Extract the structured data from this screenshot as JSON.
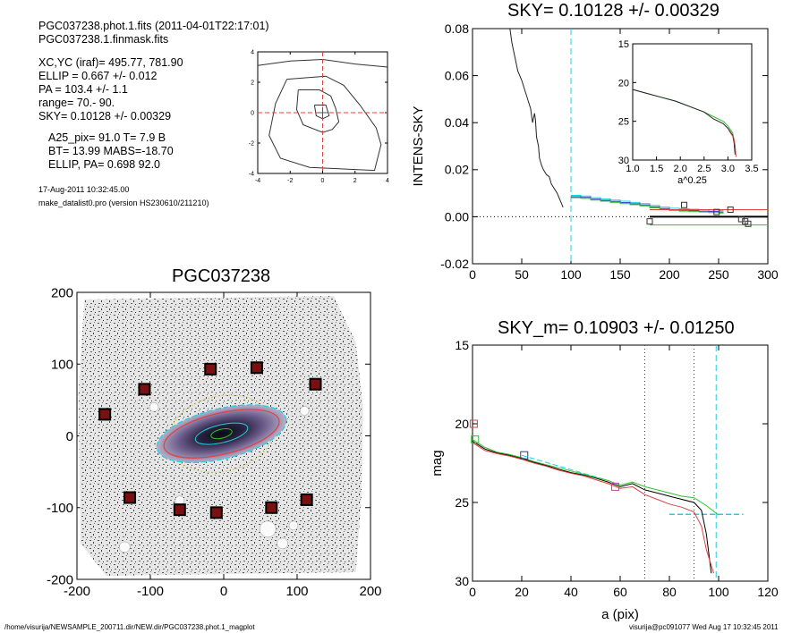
{
  "header": {
    "file_line": "PGC037238.phot.1.fits  (2011-04-01T22:17:01)",
    "mask_line": "PGC037238.1.finmask.fits",
    "params": [
      "XC,YC (iraf)=   495.77, 781.90",
      "ELLIP = 0.667 +/- 0.012",
      "PA    = 103.4 +/-   1.1",
      "range=   70.-   90.",
      "SKY= 0.10128 +/- 0.00329"
    ],
    "params2": [
      "A25_pix= 91.0   T= 7.9  B",
      "BT=  13.99   MABS=-18.70",
      "ELLIP, PA= 0.698    92.0"
    ],
    "date": "17-Aug-2011 10:32:45.00",
    "program": "make_datalist0.pro (version HS230610/211210)"
  },
  "footer": {
    "path": "/home/visurija/NEWSAMPLE_200711.dir/NEW.dir/PGC037238.phot.1_magplot",
    "user": "visurija@pc091077  Wed Aug 17 10:32:45 2011"
  },
  "colors": {
    "black": "#000000",
    "red": "#e04040",
    "green": "#30c030",
    "cyan": "#20d0e0",
    "blue": "#3030c0",
    "magenta": "#c040c0",
    "gray": "#888888"
  },
  "chart_data": [
    {
      "type": "line",
      "name": "contour-mini",
      "xlim": [
        -4,
        4
      ],
      "ylim": [
        -4,
        4
      ],
      "xticks": [
        -4,
        -2,
        0,
        2,
        4
      ],
      "yticks": [
        -4,
        -2,
        0,
        2,
        4
      ],
      "tick_labels_x": [
        "-4",
        "-2",
        "0",
        "2",
        "4"
      ],
      "tick_labels_y": [
        "-4",
        "-2",
        "0",
        "2",
        "4"
      ],
      "contours": [
        [
          [
            -4,
            3.1
          ],
          [
            -2,
            3.4
          ],
          [
            0,
            3.5
          ],
          [
            2,
            3.2
          ],
          [
            4,
            3.0
          ]
        ],
        [
          [
            -1.5,
            1.5
          ],
          [
            -0.2,
            1.5
          ],
          [
            0.5,
            1.1
          ],
          [
            0.8,
            0.3
          ],
          [
            1.0,
            -0.6
          ],
          [
            0.6,
            -1.1
          ],
          [
            0,
            -1.3
          ],
          [
            -1.2,
            -0.8
          ],
          [
            -1.6,
            0.2
          ],
          [
            -1.5,
            1.5
          ]
        ],
        [
          [
            -0.5,
            0.5
          ],
          [
            0.2,
            0.5
          ],
          [
            0.4,
            -0.2
          ],
          [
            0,
            -0.4
          ],
          [
            -0.4,
            -0.2
          ],
          [
            -0.5,
            0.5
          ]
        ],
        [
          [
            -2.2,
            2.2
          ],
          [
            0.2,
            2.4
          ],
          [
            1.3,
            1.8
          ],
          [
            2.3,
            0.5
          ],
          [
            3.3,
            -1.0
          ],
          [
            3.6,
            -2.1
          ],
          [
            3.2,
            -3.8
          ],
          [
            -0.8,
            -3.6
          ],
          [
            -2.6,
            -3.0
          ],
          [
            -3.3,
            -1.5
          ],
          [
            -2.9,
            0.6
          ],
          [
            -2.2,
            2.2
          ]
        ]
      ]
    },
    {
      "type": "line",
      "name": "sky-profile",
      "title": "SKY= 0.10128 +/- 0.00329",
      "ylabel": "INTENS-SKY",
      "xlim": [
        0,
        300
      ],
      "ylim": [
        -0.02,
        0.08
      ],
      "xticks": [
        0,
        50,
        100,
        150,
        200,
        250,
        300
      ],
      "yticks": [
        -0.02,
        0.0,
        0.02,
        0.04,
        0.06,
        0.08
      ],
      "tick_labels_x": [
        "0",
        "50",
        "100",
        "150",
        "200",
        "250",
        "300"
      ],
      "tick_labels_y": [
        "-0.02",
        "0.00",
        "0.02",
        "0.04",
        "0.06",
        "0.08"
      ],
      "profile": [
        [
          38,
          0.08
        ],
        [
          40,
          0.074
        ],
        [
          43,
          0.068
        ],
        [
          46,
          0.062
        ],
        [
          50,
          0.058
        ],
        [
          53,
          0.054
        ],
        [
          56,
          0.05
        ],
        [
          59,
          0.046
        ],
        [
          61,
          0.04
        ],
        [
          63,
          0.044
        ],
        [
          64,
          0.041
        ],
        [
          65,
          0.034
        ],
        [
          67,
          0.03
        ],
        [
          68,
          0.025
        ],
        [
          70,
          0.022
        ],
        [
          72,
          0.02
        ],
        [
          75,
          0.018
        ],
        [
          78,
          0.017
        ],
        [
          80,
          0.014
        ],
        [
          83,
          0.012
        ],
        [
          86,
          0.01
        ],
        [
          88,
          0.008
        ],
        [
          90,
          0.006
        ],
        [
          92,
          0.004
        ]
      ],
      "sky_steps": [
        [
          100,
          0.0085
        ],
        [
          110,
          0.0082
        ],
        [
          120,
          0.0075
        ],
        [
          130,
          0.007
        ],
        [
          140,
          0.0065
        ],
        [
          150,
          0.006
        ],
        [
          160,
          0.0055
        ],
        [
          170,
          0.005
        ],
        [
          180,
          0.0042
        ],
        [
          190,
          0.0035
        ],
        [
          200,
          0.003
        ],
        [
          210,
          0.0028
        ],
        [
          220,
          0.0026
        ],
        [
          230,
          0.0024
        ],
        [
          240,
          0.0022
        ],
        [
          250,
          0.002
        ]
      ],
      "squares": [
        [
          180,
          -0.002
        ],
        [
          215,
          0.005
        ],
        [
          248,
          0.002
        ],
        [
          262,
          0.003
        ],
        [
          273,
          -0.001
        ],
        [
          277,
          -0.002
        ],
        [
          280,
          -0.003
        ]
      ],
      "red_level": 0.003,
      "green_level": -0.0035,
      "black_level": 0.0,
      "vline": 100,
      "inset": {
        "xlim": [
          1.0,
          3.5
        ],
        "ylim": [
          15,
          30
        ],
        "xlabel": "a^0.25",
        "xticks": [
          1.0,
          1.5,
          2.0,
          2.5,
          3.0,
          3.5
        ],
        "yticks": [
          15,
          20,
          25,
          30
        ],
        "tick_labels_x": [
          "1.0",
          "1.5",
          "2.0",
          "2.5",
          "3.0",
          "3.5"
        ],
        "tick_labels_y": [
          "15",
          "20",
          "25",
          "30"
        ],
        "curve": [
          [
            1.0,
            20.9
          ],
          [
            1.3,
            21.4
          ],
          [
            1.6,
            21.9
          ],
          [
            1.9,
            22.4
          ],
          [
            2.2,
            23.1
          ],
          [
            2.5,
            23.8
          ],
          [
            2.7,
            24.4
          ],
          [
            2.9,
            25.0
          ],
          [
            3.0,
            25.6
          ],
          [
            3.1,
            26.5
          ],
          [
            3.13,
            27.5
          ],
          [
            3.15,
            29.0
          ]
        ]
      }
    },
    {
      "type": "scatter",
      "name": "galaxy-image",
      "title": "PGC037238",
      "xlim": [
        -200,
        200
      ],
      "ylim": [
        -200,
        200
      ],
      "xticks": [
        -200,
        -100,
        0,
        100,
        200
      ],
      "yticks": [
        -200,
        -100,
        0,
        100,
        200
      ],
      "tick_labels_x": [
        "-200",
        "-100",
        "0",
        "100",
        "200"
      ],
      "tick_labels_y": [
        "-200",
        "-100",
        "0",
        "100",
        "200"
      ],
      "markers": [
        [
          -162,
          30
        ],
        [
          -108,
          65
        ],
        [
          -18,
          93
        ],
        [
          45,
          95
        ],
        [
          125,
          72
        ],
        [
          -128,
          -86
        ],
        [
          -60,
          -103
        ],
        [
          -10,
          -107
        ],
        [
          65,
          -100
        ],
        [
          113,
          -89
        ]
      ],
      "ellipse_pa_deg": 103.4,
      "ellipse_axes": [
        91,
        30
      ]
    },
    {
      "type": "line",
      "name": "mag-profile",
      "title": "SKY_m=  0.10903 +/- 0.01250",
      "xlabel": "a (pix)",
      "ylabel": "mag",
      "xlim": [
        0,
        120
      ],
      "ylim": [
        15,
        30
      ],
      "xticks": [
        0,
        20,
        40,
        60,
        80,
        100,
        120
      ],
      "yticks": [
        15,
        20,
        25,
        30
      ],
      "tick_labels_x": [
        "0",
        "20",
        "40",
        "60",
        "80",
        "100",
        "120"
      ],
      "tick_labels_y": [
        "15",
        "20",
        "25",
        "30"
      ],
      "series": [
        {
          "color": "black",
          "values": [
            [
              0,
              21.1
            ],
            [
              5,
              21.6
            ],
            [
              10,
              21.85
            ],
            [
              15,
              22.0
            ],
            [
              20,
              22.2
            ],
            [
              25,
              22.45
            ],
            [
              30,
              22.65
            ],
            [
              35,
              22.9
            ],
            [
              40,
              23.1
            ],
            [
              45,
              23.25
            ],
            [
              50,
              23.45
            ],
            [
              55,
              23.7
            ],
            [
              60,
              24.0
            ],
            [
              65,
              23.8
            ],
            [
              70,
              24.2
            ],
            [
              75,
              24.4
            ],
            [
              80,
              24.6
            ],
            [
              85,
              24.8
            ],
            [
              90,
              25.0
            ],
            [
              93,
              25.5
            ],
            [
              95,
              27.0
            ],
            [
              97,
              29.5
            ]
          ]
        },
        {
          "color": "green",
          "values": [
            [
              0,
              21.0
            ],
            [
              5,
              21.5
            ],
            [
              10,
              21.8
            ],
            [
              15,
              21.95
            ],
            [
              20,
              22.15
            ],
            [
              25,
              22.4
            ],
            [
              30,
              22.6
            ],
            [
              35,
              22.8
            ],
            [
              40,
              23.0
            ],
            [
              45,
              23.2
            ],
            [
              50,
              23.4
            ],
            [
              55,
              23.6
            ],
            [
              60,
              23.9
            ],
            [
              65,
              23.7
            ],
            [
              70,
              24.0
            ],
            [
              75,
              24.2
            ],
            [
              80,
              24.4
            ],
            [
              85,
              24.6
            ],
            [
              90,
              24.7
            ],
            [
              95,
              25.2
            ],
            [
              100,
              25.8
            ]
          ]
        },
        {
          "color": "red",
          "values": [
            [
              0,
              21.2
            ],
            [
              5,
              21.7
            ],
            [
              10,
              21.9
            ],
            [
              15,
              22.05
            ],
            [
              20,
              22.25
            ],
            [
              25,
              22.5
            ],
            [
              30,
              22.7
            ],
            [
              35,
              22.95
            ],
            [
              40,
              23.15
            ],
            [
              45,
              23.3
            ],
            [
              50,
              23.55
            ],
            [
              55,
              23.8
            ],
            [
              60,
              24.1
            ],
            [
              65,
              24.0
            ],
            [
              70,
              24.5
            ],
            [
              75,
              24.8
            ],
            [
              80,
              25.1
            ],
            [
              85,
              25.3
            ],
            [
              90,
              25.6
            ],
            [
              93,
              26.5
            ],
            [
              95,
              28.0
            ],
            [
              98,
              29.5
            ]
          ]
        }
      ],
      "cyan_level": 25.75,
      "vlines_dotted": [
        70,
        90
      ],
      "vline_cyan": 99,
      "squares": [
        {
          "color": "red",
          "x": 0.5,
          "y": 20.0
        },
        {
          "color": "green",
          "x": 1,
          "y": 21.0
        },
        {
          "color": "blue",
          "x": 21,
          "y": 22.0
        },
        {
          "color": "magenta",
          "x": 58,
          "y": 24.0
        }
      ]
    }
  ]
}
